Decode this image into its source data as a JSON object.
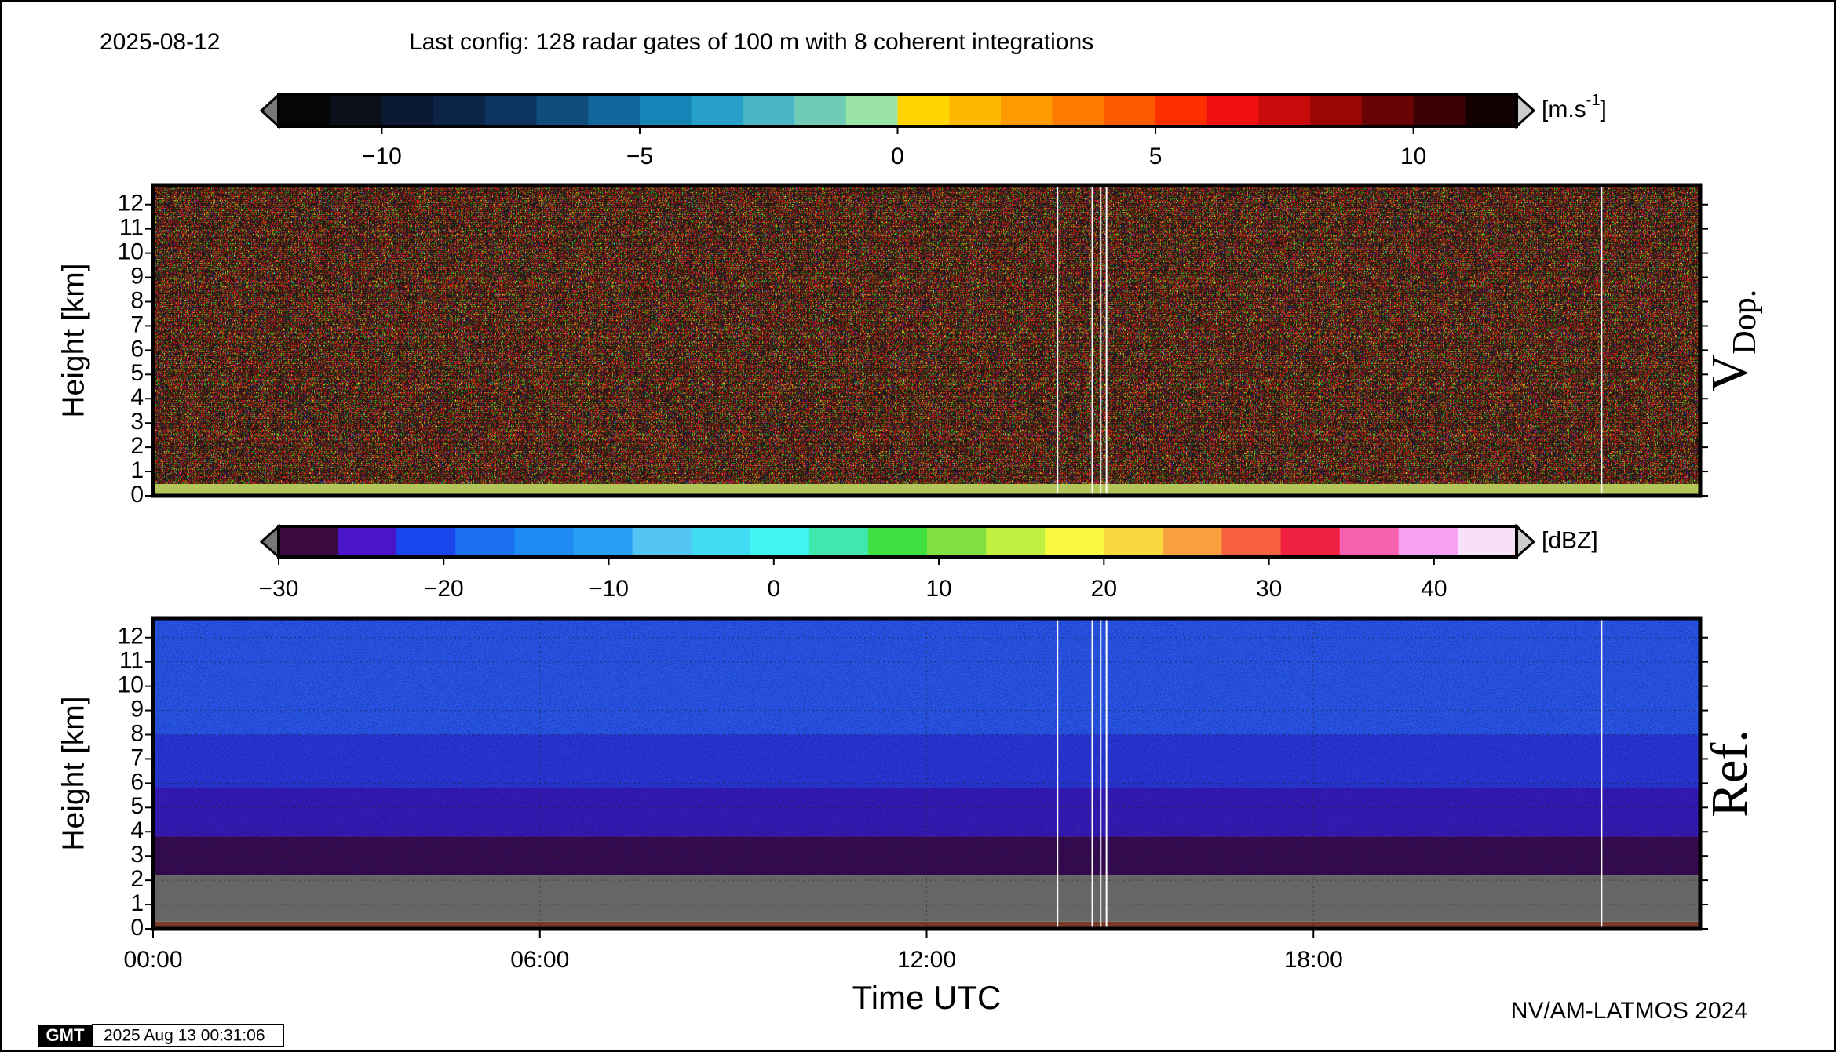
{
  "header": {
    "date": "2025-08-12",
    "config": "Last config: 128 radar gates of 100 m with 8 coherent integrations"
  },
  "chart_data": [
    {
      "type": "heatmap",
      "ylabel": "Height [km]",
      "panel_label": "V",
      "panel_label_sub": "Dop.",
      "xlim": [
        0,
        24
      ],
      "ylim": [
        0,
        12.8
      ],
      "yticks": [
        0,
        1,
        2,
        3,
        4,
        5,
        6,
        7,
        8,
        9,
        10,
        11,
        12
      ],
      "grid": true,
      "layers": [
        {
          "bottom": 0,
          "top": 0.5,
          "color": "#b4c65a"
        },
        {
          "bottom": 0.5,
          "top": 12.8,
          "color": "#8a5e44"
        }
      ],
      "gaps": [
        14.03,
        14.57,
        14.7,
        14.79,
        22.47
      ],
      "colorbar": {
        "clim": [
          -12,
          12
        ],
        "ticks": [
          {
            "value": -10,
            "label": "−10"
          },
          {
            "value": -5,
            "label": "−5"
          },
          0,
          5,
          10
        ],
        "unit": {
          "base": "[m.s",
          "sup": "-1",
          "close": "]"
        },
        "colors": [
          "#050505",
          "#0a0f1a",
          "#0b1a33",
          "#0c2448",
          "#0d3560",
          "#0f4b7d",
          "#10679c",
          "#1585b8",
          "#26a0c8",
          "#48b6c6",
          "#6fcab6",
          "#9ae4a8",
          "#ffd400",
          "#ffb800",
          "#ff9a00",
          "#ff7a00",
          "#ff5a00",
          "#ff3000",
          "#f01010",
          "#c80a0a",
          "#9a0606",
          "#6a0404",
          "#3a0202",
          "#120000"
        ]
      }
    },
    {
      "type": "heatmap",
      "ylabel": "Height [km]",
      "panel_label": "Ref.",
      "xlabel": "Time UTC",
      "xlim": [
        0,
        24
      ],
      "ylim": [
        0,
        12.8
      ],
      "yticks": [
        0,
        1,
        2,
        3,
        4,
        5,
        6,
        7,
        8,
        9,
        10,
        11,
        12
      ],
      "grid": true,
      "xticks": [
        {
          "value": 0,
          "label": "00:00"
        },
        {
          "value": 6,
          "label": "06:00"
        },
        {
          "value": 12,
          "label": "12:00"
        },
        {
          "value": 18,
          "label": "18:00"
        }
      ],
      "layers": [
        {
          "bottom": 0,
          "top": 0.3,
          "color": "#7a3a2a"
        },
        {
          "bottom": 0.3,
          "top": 2.2,
          "color": "#666666"
        },
        {
          "bottom": 2.2,
          "top": 3.8,
          "color": "#3a0c48"
        },
        {
          "bottom": 3.8,
          "top": 5.8,
          "color": "#3a1cb4"
        },
        {
          "bottom": 5.8,
          "top": 8,
          "color": "#2a3ad6"
        },
        {
          "bottom": 8,
          "top": 12.8,
          "color": "#2a5ae8"
        }
      ],
      "gaps": [
        14.03,
        14.57,
        14.7,
        14.79,
        22.47
      ],
      "colorbar": {
        "clim": [
          -30,
          45
        ],
        "ticks": [
          {
            "value": -30,
            "label": "−30"
          },
          {
            "value": -20,
            "label": "−20"
          },
          {
            "value": -10,
            "label": "−10"
          },
          0,
          10,
          20,
          30,
          40
        ],
        "unit": {
          "base": "[dBZ]"
        },
        "colors": [
          "#3a0a40",
          "#4a14c8",
          "#1a46ee",
          "#1a6ef0",
          "#1e8af2",
          "#2aa0f4",
          "#54c4f4",
          "#40dcf4",
          "#40f4f4",
          "#40e8b0",
          "#40e040",
          "#80e040",
          "#c0f040",
          "#f8f840",
          "#f8d840",
          "#f8a040",
          "#f86040",
          "#f02040",
          "#f860b0",
          "#f8a0f0",
          "#f8e0f8"
        ]
      }
    }
  ],
  "footer": {
    "logo": "GMT",
    "timestamp": "2025 Aug 13 00:31:06",
    "credit": "NV/AM-LATMOS 2024"
  }
}
